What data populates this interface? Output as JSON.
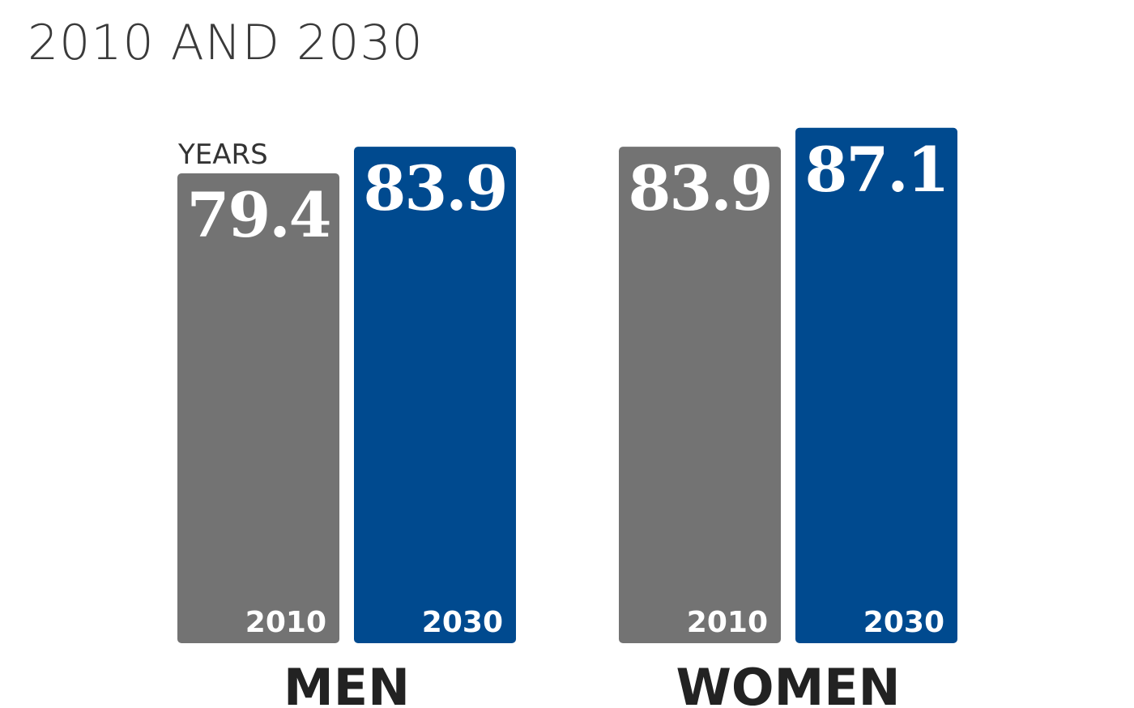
{
  "chart_data": {
    "type": "bar",
    "subtitle": "2010 AND 2030",
    "unit_label": "YEARS",
    "categories": [
      "MEN",
      "WOMEN"
    ],
    "series": [
      {
        "name": "2010",
        "values": [
          79.4,
          83.9
        ],
        "value_labels": [
          "79.4",
          "83.9"
        ]
      },
      {
        "name": "2030",
        "values": [
          83.9,
          87.1
        ],
        "value_labels": [
          "83.9",
          "87.1"
        ]
      }
    ],
    "ylim": [
      0,
      100
    ],
    "grid": false,
    "legend": "none",
    "colors": {
      "2010": "#737373",
      "2030": "#004a8f"
    }
  }
}
